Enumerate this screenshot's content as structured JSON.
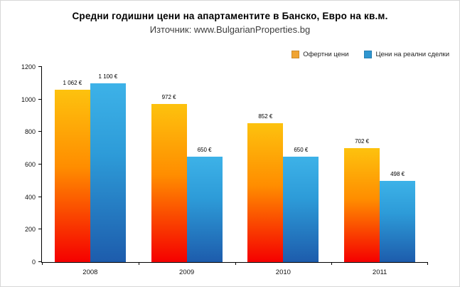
{
  "header": {
    "title": "Средни годишни цени на апартаментите в Банско, Евро на кв.м.",
    "subtitle": "Източник: www.BulgarianProperties.bg"
  },
  "legend": {
    "items": [
      {
        "label": "Офертни цени",
        "color": "#f0a432"
      },
      {
        "label": "Цени на реални сделки",
        "color": "#2f96d0"
      }
    ]
  },
  "chart_data": {
    "type": "bar",
    "title": "Средни годишни цени на апартаментите в Банско, Евро на кв.м.",
    "subtitle": "Източник: www.BulgarianProperties.bg",
    "categories": [
      "2008",
      "2009",
      "2010",
      "2011"
    ],
    "series": [
      {
        "key": "offer-prices",
        "name": "Офертни цени",
        "values": [
          1062,
          972,
          852,
          702
        ],
        "labels": [
          "1 062 €",
          "972 €",
          "852 €",
          "702 €"
        ],
        "gradient": [
          "#f50000",
          "#ff8d00 55%",
          "#fdc20e"
        ]
      },
      {
        "key": "real-deal-prices",
        "name": "Цени на реални сделки",
        "values": [
          1100,
          650,
          650,
          498
        ],
        "labels": [
          "1 100 €",
          "650 €",
          "650 €",
          "498 €"
        ],
        "gradient": [
          "#1d5cac",
          "#2d9bd8 60%",
          "#3db2e8"
        ]
      }
    ],
    "ylim": [
      0,
      1200
    ],
    "yticks": [
      0,
      200,
      400,
      600,
      800,
      1000,
      1200
    ],
    "xlabel": "",
    "ylabel": "",
    "grid": false,
    "legend_position": "top-right"
  }
}
